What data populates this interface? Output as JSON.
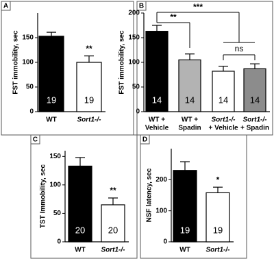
{
  "chart_data": [
    {
      "type": "bar",
      "panel": "A",
      "y_label": "FST immobility, sec",
      "categories": [
        [
          "WT"
        ],
        [
          "Sort1-/-"
        ]
      ],
      "values": [
        153,
        100
      ],
      "errors": [
        8,
        13
      ],
      "colors": [
        "#000000",
        "#ffffff"
      ],
      "n": [
        19,
        19
      ],
      "significance": [
        null,
        "**"
      ],
      "ylim": [
        0,
        200
      ],
      "yticks": [
        0,
        50,
        100,
        150
      ]
    },
    {
      "type": "bar",
      "panel": "B",
      "y_label": "FST immobility, sec",
      "categories": [
        [
          "WT +",
          "Vehicle"
        ],
        [
          "WT +",
          "Spadin"
        ],
        [
          "Sort1-/-",
          "+ Vehicle"
        ],
        [
          "Sort1-/-",
          "+ Spadin"
        ]
      ],
      "values": [
        163,
        105,
        82,
        87
      ],
      "errors": [
        12,
        12,
        10,
        10
      ],
      "colors": [
        "#000000",
        "#b3b3b3",
        "#ffffff",
        "#8c8c8c"
      ],
      "n": [
        14,
        14,
        14,
        14
      ],
      "comparisons": [
        "**",
        "***",
        "ns"
      ],
      "ylim": [
        0,
        200
      ],
      "yticks": [
        0,
        50,
        100,
        150,
        200
      ]
    },
    {
      "type": "bar",
      "panel": "C",
      "y_label": "TST Immobility, sec",
      "categories": [
        [
          "WT"
        ],
        [
          "Sort1-/-"
        ]
      ],
      "values": [
        133,
        65
      ],
      "errors": [
        15,
        12
      ],
      "colors": [
        "#000000",
        "#ffffff"
      ],
      "n": [
        20,
        20
      ],
      "significance": [
        null,
        "**"
      ],
      "ylim": [
        0,
        160
      ],
      "yticks": [
        0,
        50,
        100,
        150
      ]
    },
    {
      "type": "bar",
      "panel": "D",
      "y_label": "NSF latency, sec",
      "categories": [
        [
          "WT"
        ],
        [
          "Sort1-/-"
        ]
      ],
      "values": [
        230,
        158
      ],
      "errors": [
        28,
        18
      ],
      "colors": [
        "#000000",
        "#ffffff"
      ],
      "n": [
        19,
        19
      ],
      "significance": [
        null,
        "*"
      ],
      "ylim": [
        0,
        300
      ],
      "yticks": [
        0,
        100,
        200
      ]
    }
  ]
}
